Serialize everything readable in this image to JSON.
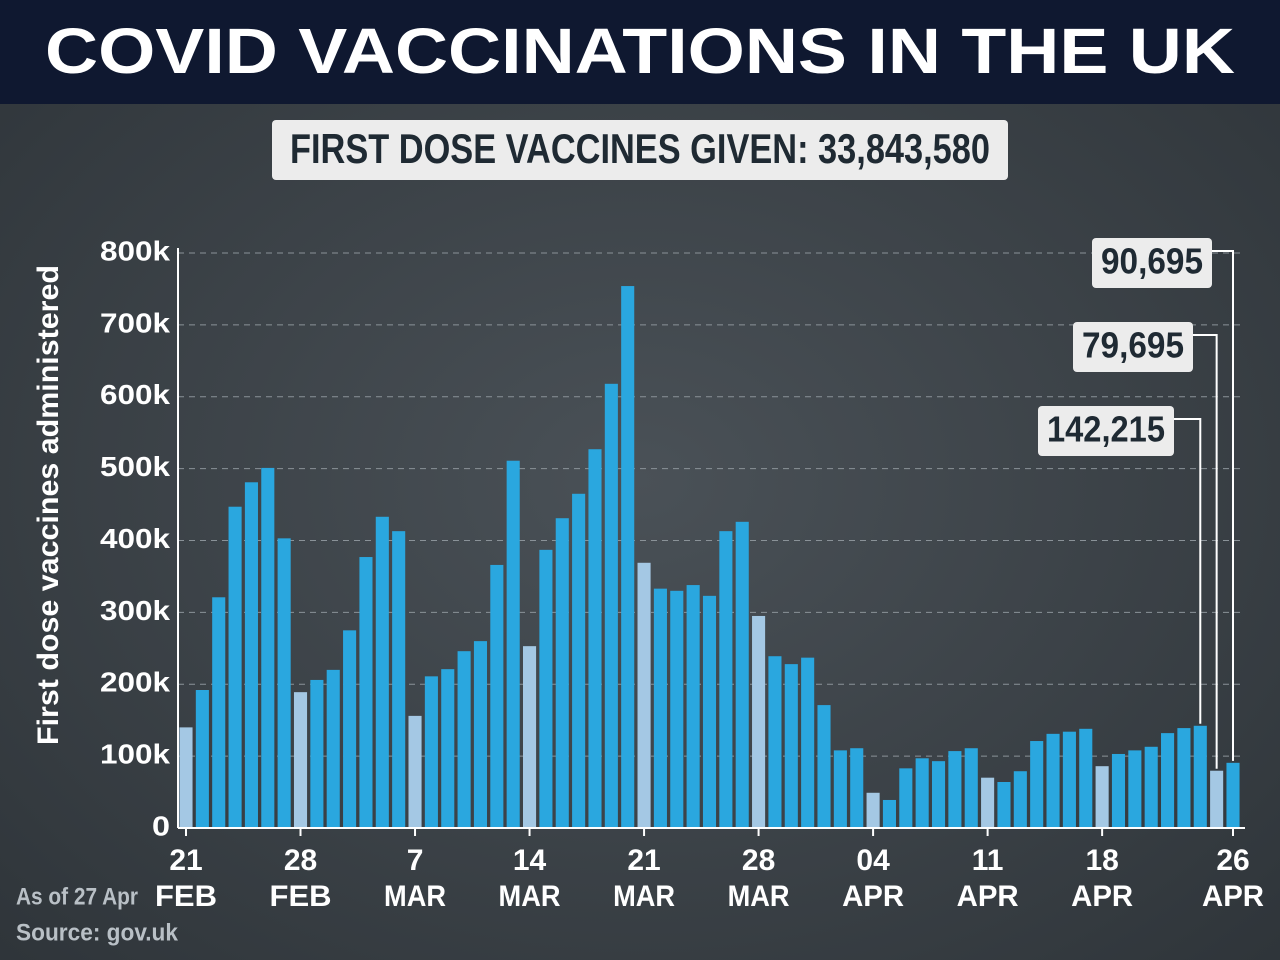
{
  "chart_data": {
    "type": "bar",
    "title": "COVID VACCINATIONS IN THE UK",
    "subtitle": "FIRST DOSE VACCINES GIVEN: 33,843,580",
    "y_label": "First dose vaccines administered",
    "notes": [
      "As of 27 Apr",
      "Source: gov.uk"
    ],
    "categories": [
      {
        "day": "21",
        "month": "FEB"
      },
      null,
      null,
      null,
      null,
      null,
      null,
      {
        "day": "28",
        "month": "FEB"
      },
      null,
      null,
      null,
      null,
      null,
      null,
      {
        "day": "7",
        "month": "MAR"
      },
      null,
      null,
      null,
      null,
      null,
      null,
      {
        "day": "14",
        "month": "MAR"
      },
      null,
      null,
      null,
      null,
      null,
      null,
      {
        "day": "21",
        "month": "MAR"
      },
      null,
      null,
      null,
      null,
      null,
      null,
      {
        "day": "28",
        "month": "MAR"
      },
      null,
      null,
      null,
      null,
      null,
      null,
      {
        "day": "04",
        "month": "APR"
      },
      null,
      null,
      null,
      null,
      null,
      null,
      {
        "day": "11",
        "month": "APR"
      },
      null,
      null,
      null,
      null,
      null,
      null,
      {
        "day": "18",
        "month": "APR"
      },
      null,
      null,
      null,
      null,
      null,
      null,
      null,
      {
        "day": "26",
        "month": "APR"
      }
    ],
    "series": [
      {
        "name": "First doses",
        "values": [
          140000,
          192000,
          321000,
          447000,
          481000,
          501000,
          403000,
          189000,
          206000,
          220000,
          275000,
          377000,
          433000,
          413000,
          156000,
          211000,
          221000,
          246000,
          260000,
          366000,
          511000,
          253000,
          387000,
          431000,
          465000,
          527000,
          618000,
          754000,
          369000,
          333000,
          330000,
          338000,
          323000,
          413000,
          426000,
          295000,
          239000,
          228000,
          237000,
          171000,
          108000,
          111000,
          49000,
          39000,
          83000,
          97000,
          93000,
          107000,
          111000,
          70000,
          64000,
          79000,
          121000,
          131000,
          134000,
          138000,
          86000,
          103000,
          108000,
          113000,
          132000,
          139000,
          142215,
          79695,
          90695
        ],
        "value_labels": [
          null,
          null,
          null,
          null,
          null,
          null,
          null,
          null,
          null,
          null,
          null,
          null,
          null,
          null,
          null,
          null,
          null,
          null,
          null,
          null,
          null,
          null,
          null,
          null,
          null,
          null,
          null,
          null,
          null,
          null,
          null,
          null,
          null,
          null,
          null,
          null,
          null,
          null,
          null,
          null,
          null,
          null,
          null,
          null,
          null,
          null,
          null,
          null,
          null,
          null,
          null,
          null,
          null,
          null,
          null,
          null,
          null,
          null,
          null,
          null,
          null,
          null,
          "142,215",
          "79,695",
          "90,695"
        ],
        "colors": [
          "#a4c8e4",
          "#2aa7df",
          "#2aa7df",
          "#2aa7df",
          "#2aa7df",
          "#2aa7df",
          "#2aa7df",
          "#a4c8e4",
          "#2aa7df",
          "#2aa7df",
          "#2aa7df",
          "#2aa7df",
          "#2aa7df",
          "#2aa7df",
          "#a4c8e4",
          "#2aa7df",
          "#2aa7df",
          "#2aa7df",
          "#2aa7df",
          "#2aa7df",
          "#2aa7df",
          "#a4c8e4",
          "#2aa7df",
          "#2aa7df",
          "#2aa7df",
          "#2aa7df",
          "#2aa7df",
          "#2aa7df",
          "#a4c8e4",
          "#2aa7df",
          "#2aa7df",
          "#2aa7df",
          "#2aa7df",
          "#2aa7df",
          "#2aa7df",
          "#a4c8e4",
          "#2aa7df",
          "#2aa7df",
          "#2aa7df",
          "#2aa7df",
          "#2aa7df",
          "#2aa7df",
          "#a4c8e4",
          "#2aa7df",
          "#2aa7df",
          "#2aa7df",
          "#2aa7df",
          "#2aa7df",
          "#2aa7df",
          "#a4c8e4",
          "#2aa7df",
          "#2aa7df",
          "#2aa7df",
          "#2aa7df",
          "#2aa7df",
          "#2aa7df",
          "#a4c8e4",
          "#2aa7df",
          "#2aa7df",
          "#2aa7df",
          "#2aa7df",
          "#2aa7df",
          "#2aa7df",
          "#a4c8e4",
          "#2aa7df"
        ]
      }
    ],
    "ylim": [
      0,
      800000
    ],
    "yticks": [
      0,
      {
        "value": 100000,
        "label": "100k"
      },
      {
        "value": 200000,
        "label": "200k"
      },
      {
        "value": 300000,
        "label": "300k"
      },
      {
        "value": 400000,
        "label": "400k"
      },
      {
        "value": 500000,
        "label": "500k"
      },
      {
        "value": 600000,
        "label": "600k"
      },
      {
        "value": 700000,
        "label": "700k"
      },
      {
        "value": 800000,
        "label": "800k"
      }
    ],
    "grid": true
  }
}
